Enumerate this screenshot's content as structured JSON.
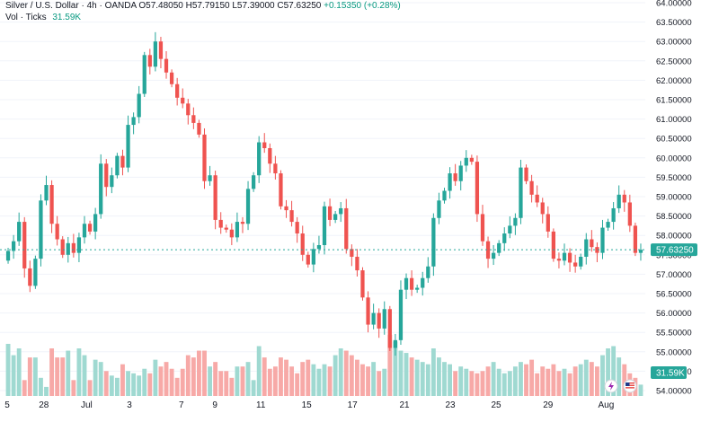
{
  "legend": {
    "symbol": "Silver / U.S. Dollar · 4h · OANDA",
    "ohlc": "O57.48050  H57.79150  L57.39000  C57.63250",
    "change": "+0.15350 (+0.28%)",
    "volume_label": "Vol · Ticks",
    "volume_value": "31.59K"
  },
  "price_axis": {
    "labels": [
      "64.00000",
      "63.50000",
      "63.00000",
      "62.50000",
      "62.00000",
      "61.50000",
      "61.00000",
      "60.50000",
      "60.00000",
      "59.50000",
      "59.00000",
      "58.50000",
      "58.00000",
      "57.50000",
      "57.00000",
      "56.50000",
      "56.00000",
      "55.50000",
      "55.00000",
      "54.50000",
      "54.00000"
    ],
    "last_price": "57.63250",
    "volume_badge": "31.59K"
  },
  "time_axis": {
    "labels": [
      "5",
      "28",
      "Jul",
      "3",
      "7",
      "9",
      "11",
      "15",
      "17",
      "21",
      "23",
      "25",
      "29",
      "Aug"
    ]
  },
  "colors": {
    "up": "#26a69a",
    "down": "#ef5350",
    "vol_up": "#9fd9d1",
    "vol_down": "#f7a9a7",
    "grid": "#f0f3fa",
    "axis_text": "#131722",
    "last_price_line": "#26a69a"
  },
  "icons": {
    "flash": "lightning-icon",
    "flag": "us-flag-icon"
  },
  "chart_data": {
    "type": "candlestick",
    "title": "",
    "ylim": [
      54.0,
      64.0
    ],
    "close": [
      57.6,
      57.85,
      58.35,
      57.15,
      56.7,
      57.4,
      58.9,
      59.3,
      58.3,
      57.9,
      57.5,
      57.8,
      57.55,
      57.95,
      58.3,
      58.1,
      58.55,
      59.85,
      59.25,
      59.55,
      60.05,
      59.75,
      60.85,
      61.05,
      61.65,
      62.65,
      62.35,
      63.0,
      62.55,
      62.2,
      61.9,
      61.55,
      61.4,
      61.1,
      60.9,
      60.6,
      59.4,
      59.55,
      58.4,
      58.2,
      58.15,
      57.95,
      58.35,
      58.3,
      59.2,
      59.55,
      60.4,
      60.25,
      59.85,
      59.6,
      58.75,
      58.65,
      58.35,
      58.05,
      57.5,
      57.25,
      57.65,
      57.75,
      58.75,
      58.4,
      58.55,
      58.7,
      57.65,
      57.45,
      57.1,
      56.4,
      55.7,
      56.0,
      55.6,
      56.1,
      55.1,
      55.3,
      56.6,
      56.9,
      56.6,
      56.65,
      56.9,
      57.2,
      58.45,
      58.9,
      59.15,
      59.6,
      59.4,
      59.8,
      60.0,
      59.9,
      58.55,
      57.85,
      57.4,
      57.55,
      57.8,
      58.05,
      58.25,
      58.45,
      59.75,
      59.4,
      59.05,
      58.85,
      58.55,
      58.1,
      57.4,
      57.35,
      57.55,
      57.3,
      57.2,
      57.45,
      57.9,
      57.7,
      57.55,
      58.2,
      58.35,
      58.7,
      59.05,
      58.85,
      58.25,
      57.55,
      57.63
    ],
    "volume": [
      5.35,
      5.1,
      5.25,
      4.55,
      5.05,
      5.05,
      4.6,
      4.4,
      5.25,
      5.05,
      5.05,
      5.2,
      4.55,
      5.25,
      5.1,
      4.55,
      5.0,
      4.95,
      4.75,
      4.65,
      4.6,
      4.9,
      4.75,
      4.7,
      4.65,
      4.8,
      4.7,
      5.0,
      4.85,
      4.95,
      4.8,
      4.6,
      4.8,
      5.1,
      5.05,
      5.2,
      5.2,
      4.85,
      4.95,
      4.75,
      4.75,
      4.6,
      4.85,
      4.85,
      4.95,
      4.55,
      5.3,
      5.05,
      4.8,
      4.85,
      5.05,
      5.0,
      4.85,
      4.7,
      4.95,
      5.0,
      4.9,
      4.8,
      4.9,
      4.85,
      5.1,
      5.25,
      5.2,
      5.1,
      5.0,
      4.9,
      4.85,
      4.95,
      4.75,
      4.8,
      5.55,
      5.4,
      5.2,
      5.15,
      5.05,
      5.0,
      4.95,
      4.9,
      5.25,
      5.05,
      4.95,
      4.9,
      4.75,
      4.85,
      4.8,
      4.75,
      4.7,
      4.75,
      4.85,
      4.95,
      4.8,
      4.7,
      4.75,
      4.85,
      4.95,
      4.9,
      5.0,
      4.7,
      4.85,
      4.8,
      4.9,
      4.75,
      4.8,
      4.7,
      4.85,
      4.9,
      5.0,
      4.95,
      4.85,
      5.1,
      5.25,
      5.3,
      5.05,
      4.9,
      4.7,
      4.6,
      4.45
    ],
    "volume_ylim": [
      4.2,
      6.4
    ]
  }
}
